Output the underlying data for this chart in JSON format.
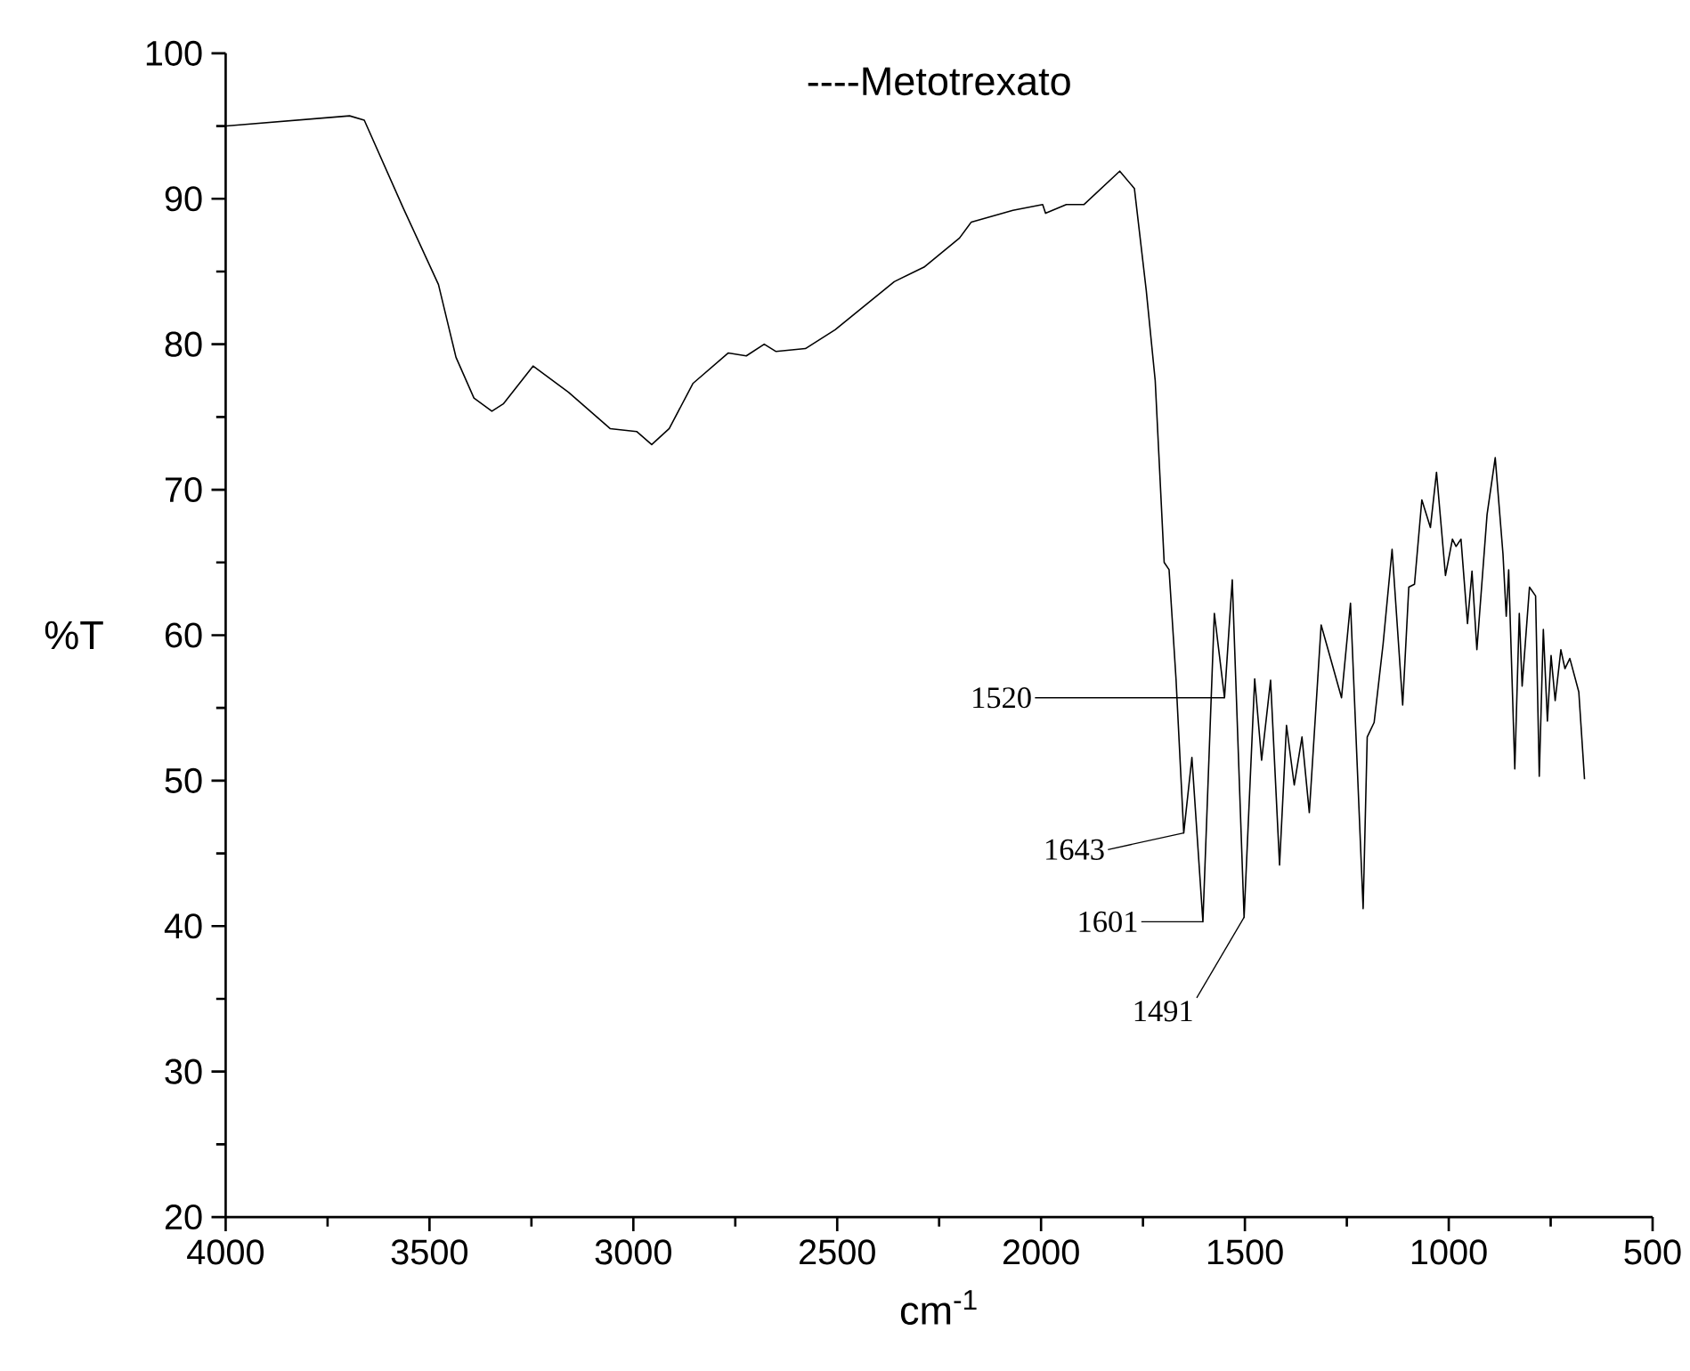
{
  "chart_data": {
    "type": "line",
    "title": "----Metotrexato",
    "xlabel": "cm$^{-1}$",
    "ylabel": "%T",
    "xlim": [
      4000,
      500
    ],
    "xticks": [
      4000,
      3500,
      3000,
      2500,
      2000,
      1500,
      1000,
      500
    ],
    "ylim": [
      20,
      100
    ],
    "yticks": [
      20,
      30,
      40,
      50,
      60,
      70,
      80,
      90,
      100
    ],
    "grid": false,
    "marker": "none",
    "line_style": "solid",
    "series": [
      {
        "color": "#000000",
        "x": [
          4000,
          3696,
          3660,
          3565,
          3478,
          3435,
          3391,
          3347,
          3319,
          3246,
          3159,
          3057,
          2992,
          2955,
          2912,
          2854,
          2767,
          2723,
          2679,
          2650,
          2578,
          2505,
          2360,
          2287,
          2200,
          2171,
          2069,
          1996,
          1989,
          1938,
          1895,
          1807,
          1771,
          1742,
          1720,
          1698,
          1686,
          1669,
          1650,
          1630,
          1603,
          1575,
          1550,
          1531,
          1502,
          1476,
          1459,
          1437,
          1415,
          1398,
          1379,
          1360,
          1342,
          1313,
          1292,
          1263,
          1241,
          1210,
          1200,
          1183,
          1161,
          1139,
          1113,
          1098,
          1084,
          1066,
          1045,
          1030,
          1008,
          991,
          982,
          970,
          954,
          943,
          931,
          906,
          886,
          867,
          859,
          853,
          838,
          827,
          820,
          802,
          787,
          778,
          768,
          758,
          749,
          739,
          725,
          715,
          703,
          681,
          667
        ],
        "values": [
          95.0,
          95.7,
          95.4,
          89.4,
          84.1,
          79.1,
          76.3,
          75.4,
          75.9,
          78.5,
          76.7,
          74.2,
          74.0,
          73.1,
          74.2,
          77.3,
          79.4,
          79.2,
          80.0,
          79.5,
          79.7,
          81.0,
          84.3,
          85.3,
          87.3,
          88.4,
          89.2,
          89.6,
          89.0,
          89.6,
          89.6,
          91.9,
          90.7,
          83.7,
          77.5,
          65.0,
          64.5,
          57.0,
          46.4,
          51.6,
          40.3,
          61.5,
          55.7,
          63.8,
          40.6,
          57.0,
          51.4,
          56.9,
          44.2,
          53.8,
          49.7,
          53.0,
          47.8,
          60.7,
          58.6,
          55.7,
          62.2,
          41.2,
          53.0,
          54.0,
          59.4,
          65.9,
          55.2,
          63.3,
          63.5,
          69.3,
          67.4,
          71.2,
          64.1,
          66.6,
          66.1,
          66.6,
          60.8,
          64.4,
          59.0,
          68.3,
          72.2,
          65.6,
          61.3,
          64.5,
          50.8,
          61.5,
          56.5,
          63.3,
          62.7,
          50.3,
          60.4,
          54.1,
          58.6,
          55.5,
          59.0,
          57.7,
          58.4,
          56.1,
          50.1
        ]
      }
    ],
    "annotations": [
      {
        "text": "1520",
        "x": 1550,
        "y": 55.7
      },
      {
        "text": "1643",
        "x": 1650,
        "y": 46.4
      },
      {
        "text": "1601",
        "x": 1603,
        "y": 40.3
      },
      {
        "text": "1491",
        "x": 1502,
        "y": 40.6
      }
    ]
  }
}
